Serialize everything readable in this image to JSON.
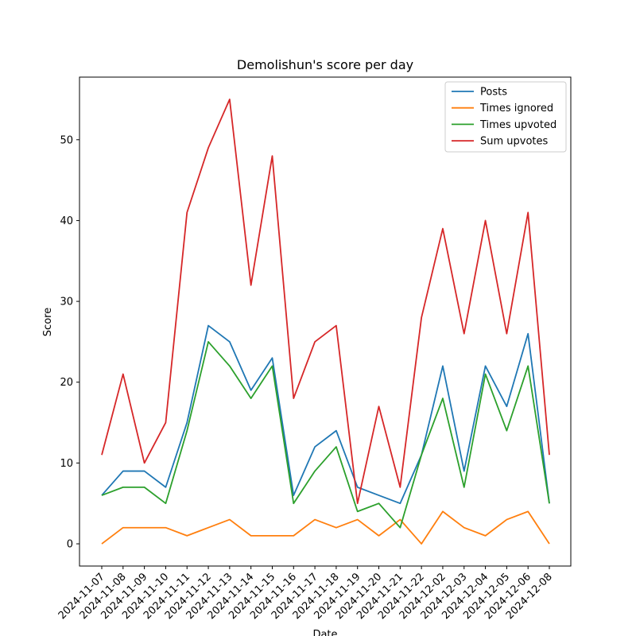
{
  "chart_data": {
    "type": "line",
    "title": "Demolishun's score per day",
    "x_label": "Date",
    "y_label": "Score",
    "categories": [
      "2024-11-07",
      "2024-11-08",
      "2024-11-09",
      "2024-11-10",
      "2024-11-11",
      "2024-11-12",
      "2024-11-13",
      "2024-11-14",
      "2024-11-15",
      "2024-11-16",
      "2024-11-17",
      "2024-11-18",
      "2024-11-19",
      "2024-11-20",
      "2024-11-21",
      "2024-11-22",
      "2024-12-02",
      "2024-12-03",
      "2024-12-04",
      "2024-12-05",
      "2024-12-06",
      "2024-12-08"
    ],
    "series": [
      {
        "name": "Posts",
        "color": "#1f77b4",
        "values": [
          6,
          9,
          9,
          7,
          15,
          27,
          25,
          19,
          23,
          6,
          12,
          14,
          7,
          6,
          5,
          11,
          22,
          9,
          22,
          17,
          26,
          5
        ]
      },
      {
        "name": "Times ignored",
        "color": "#ff7f0e",
        "values": [
          0,
          2,
          2,
          2,
          1,
          2,
          3,
          1,
          1,
          1,
          3,
          2,
          3,
          1,
          3,
          0,
          4,
          2,
          1,
          3,
          4,
          0
        ]
      },
      {
        "name": "Times upvoted",
        "color": "#2ca02c",
        "values": [
          6,
          7,
          7,
          5,
          14,
          25,
          22,
          18,
          22,
          5,
          9,
          12,
          4,
          5,
          2,
          11,
          18,
          7,
          21,
          14,
          22,
          5
        ]
      },
      {
        "name": "Sum upvotes",
        "color": "#d62728",
        "values": [
          11,
          21,
          10,
          15,
          41,
          49,
          55,
          32,
          48,
          18,
          25,
          27,
          5,
          17,
          7,
          28,
          39,
          26,
          40,
          26,
          41,
          11
        ]
      }
    ],
    "ylim": [
      -2.75,
      57.75
    ],
    "yticks": [
      0,
      10,
      20,
      30,
      40,
      50
    ],
    "legend": "upper right"
  }
}
